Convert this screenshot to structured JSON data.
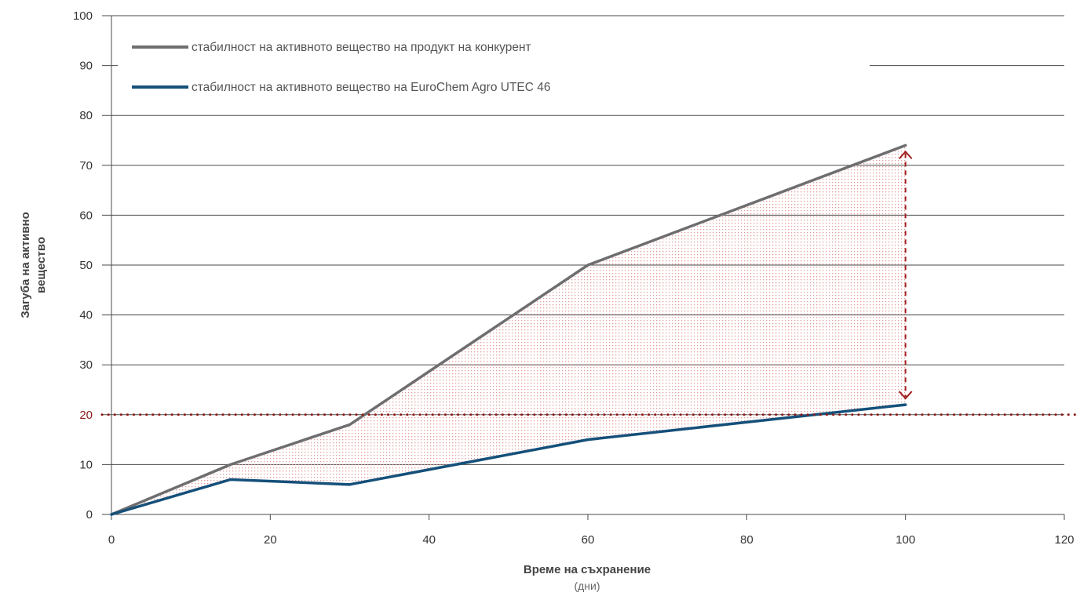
{
  "chart_data": {
    "type": "line",
    "xlabel": "Време на съхранение",
    "xlabel_unit": "(дни)",
    "ylabel_lines": [
      "Загуба на активно",
      "вещество"
    ],
    "xlim": [
      0,
      120
    ],
    "ylim": [
      0,
      100
    ],
    "x_ticks": [
      0,
      20,
      40,
      60,
      80,
      100,
      120
    ],
    "y_ticks": [
      0,
      10,
      20,
      30,
      40,
      50,
      60,
      70,
      80,
      90,
      100
    ],
    "grid": "horizontal",
    "legend_placement": "top-left",
    "series": [
      {
        "name": "стабилност на активното вещество на продукт на конкурент",
        "color": "#6e6e70",
        "x": [
          0,
          15,
          30,
          60,
          100
        ],
        "y": [
          0,
          10,
          18,
          50,
          74
        ]
      },
      {
        "name": "стабилност на активното вещество на EuroChem Agro UTEC 46",
        "color": "#15507a",
        "x": [
          0,
          15,
          30,
          60,
          100
        ],
        "y": [
          0,
          7,
          6,
          15,
          22
        ]
      }
    ],
    "reference_line": {
      "y": 20,
      "label": "20",
      "color": "#8b1a1a",
      "style": "dotted"
    },
    "difference_arrow": {
      "x": 100,
      "color": "#a01f1f"
    },
    "shading_color": "#e8a3a3"
  }
}
